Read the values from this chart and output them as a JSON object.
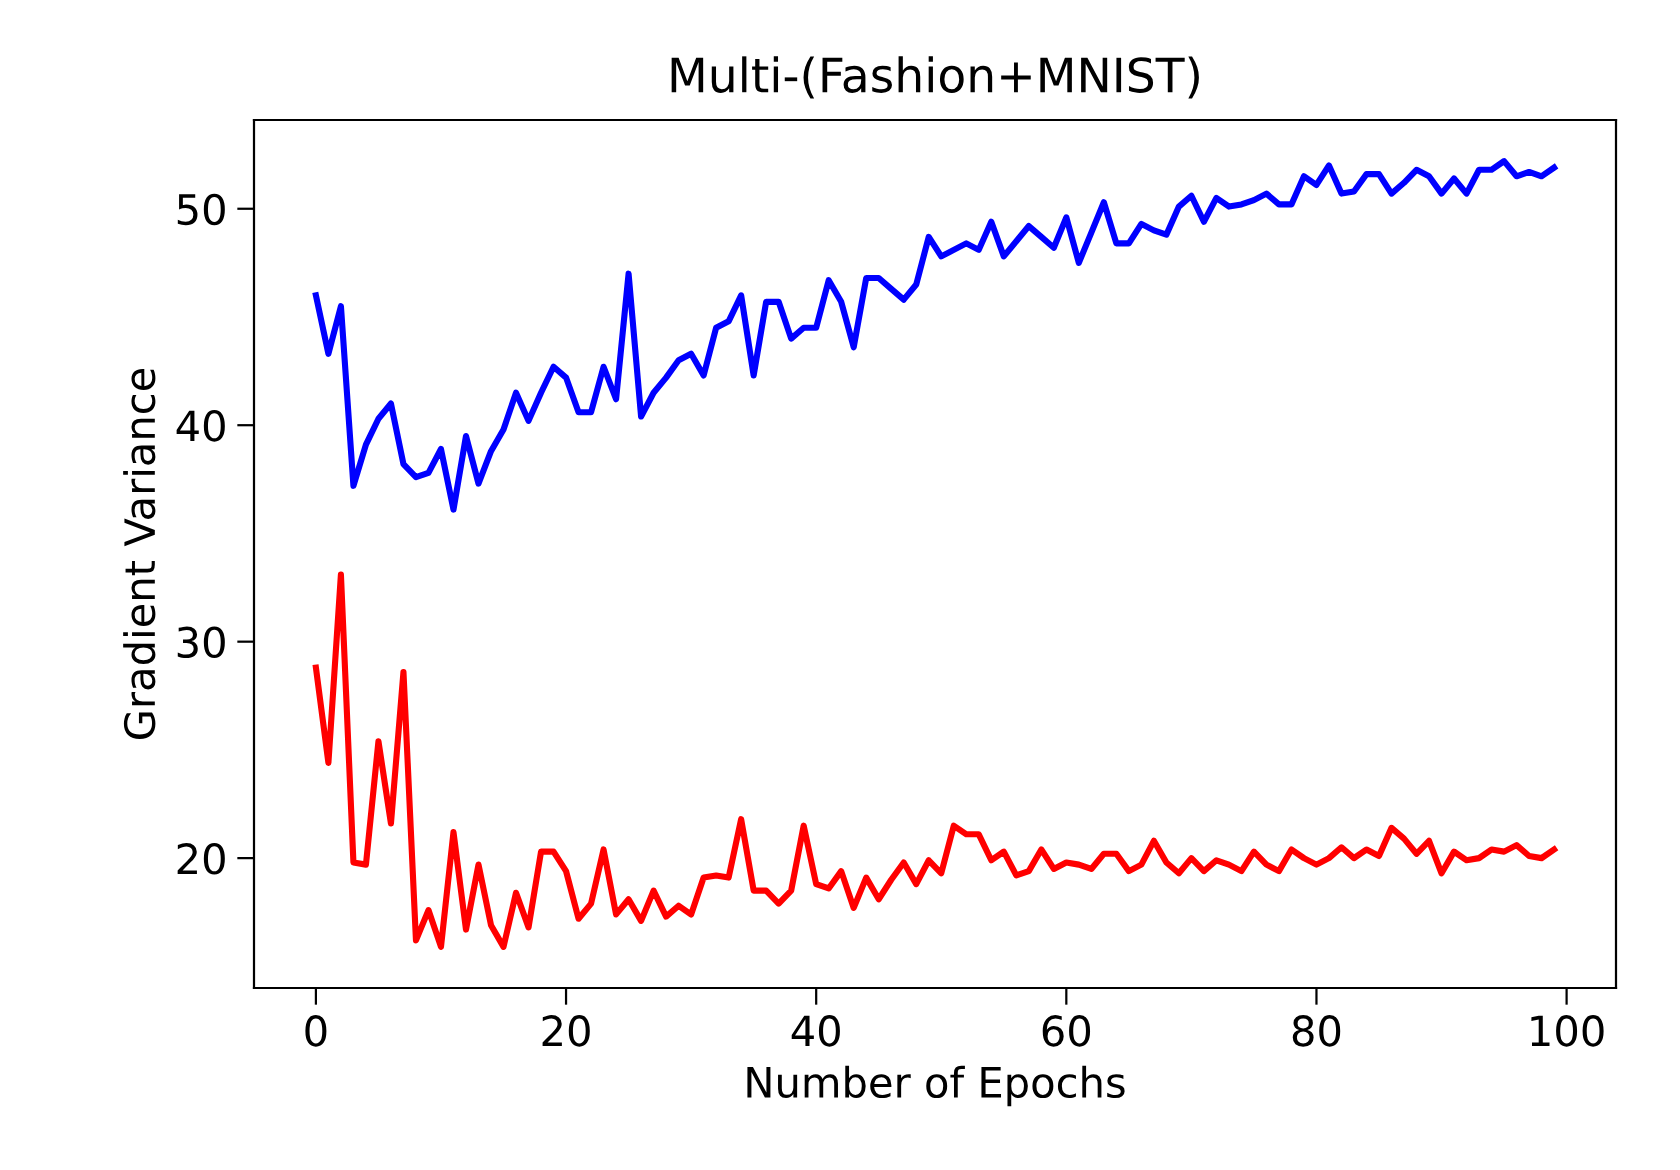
{
  "chart_data": {
    "type": "line",
    "title": "Multi-(Fashion+MNIST)",
    "xlabel": "Number of Epochs",
    "ylabel": "Gradient Variance",
    "x": [
      0,
      1,
      2,
      3,
      4,
      5,
      6,
      7,
      8,
      9,
      10,
      11,
      12,
      13,
      14,
      15,
      16,
      17,
      18,
      19,
      20,
      21,
      22,
      23,
      24,
      25,
      26,
      27,
      28,
      29,
      30,
      31,
      32,
      33,
      34,
      35,
      36,
      37,
      38,
      39,
      40,
      41,
      42,
      43,
      44,
      45,
      46,
      47,
      48,
      49,
      50,
      51,
      52,
      53,
      54,
      55,
      56,
      57,
      58,
      59,
      60,
      61,
      62,
      63,
      64,
      65,
      66,
      67,
      68,
      69,
      70,
      71,
      72,
      73,
      74,
      75,
      76,
      77,
      78,
      79,
      80,
      81,
      82,
      83,
      84,
      85,
      86,
      87,
      88,
      89,
      90,
      91,
      92,
      93,
      94,
      95,
      96,
      97,
      98,
      99
    ],
    "series": [
      {
        "color": "#0000ff",
        "values": [
          46.0,
          43.3,
          45.5,
          37.2,
          39.1,
          40.3,
          41.0,
          38.2,
          37.6,
          37.8,
          38.9,
          36.1,
          39.5,
          37.3,
          38.8,
          39.8,
          41.5,
          40.2,
          41.5,
          42.7,
          42.2,
          40.6,
          40.6,
          42.7,
          41.2,
          47.0,
          40.4,
          41.5,
          42.2,
          43.0,
          43.3,
          42.3,
          44.5,
          44.8,
          46.0,
          42.3,
          45.7,
          45.7,
          44.0,
          44.5,
          44.5,
          46.7,
          45.7,
          43.6,
          46.8,
          46.8,
          46.3,
          45.8,
          46.5,
          48.7,
          47.8,
          48.1,
          48.4,
          48.1,
          49.4,
          47.8,
          48.5,
          49.2,
          48.7,
          48.2,
          49.6,
          47.5,
          48.9,
          50.3,
          48.4,
          48.4,
          49.3,
          49.0,
          48.8,
          50.1,
          50.6,
          49.4,
          50.5,
          50.1,
          50.2,
          50.4,
          50.7,
          50.2,
          50.2,
          51.5,
          51.1,
          52.0,
          50.7,
          50.8,
          51.6,
          51.6,
          50.7,
          51.2,
          51.8,
          51.5,
          50.7,
          51.4,
          50.7,
          51.8,
          51.8,
          52.2,
          51.5,
          51.7,
          51.5,
          51.9
        ]
      },
      {
        "color": "#ff0000",
        "values": [
          28.8,
          24.4,
          33.1,
          19.8,
          19.7,
          25.4,
          21.6,
          28.6,
          16.2,
          17.6,
          15.9,
          21.2,
          16.7,
          19.7,
          16.9,
          15.9,
          18.4,
          16.8,
          20.3,
          20.3,
          19.4,
          17.2,
          17.9,
          20.4,
          17.4,
          18.1,
          17.1,
          18.5,
          17.3,
          17.8,
          17.4,
          19.1,
          19.2,
          19.1,
          21.8,
          18.5,
          18.5,
          17.9,
          18.5,
          21.5,
          18.8,
          18.6,
          19.4,
          17.7,
          19.1,
          18.1,
          19.0,
          19.8,
          18.8,
          19.9,
          19.3,
          21.5,
          21.1,
          21.1,
          19.9,
          20.3,
          19.2,
          19.4,
          20.4,
          19.5,
          19.8,
          19.7,
          19.5,
          20.2,
          20.2,
          19.4,
          19.7,
          20.8,
          19.8,
          19.3,
          20.0,
          19.4,
          19.9,
          19.7,
          19.4,
          20.3,
          19.7,
          19.4,
          20.4,
          20.0,
          19.7,
          20.0,
          20.5,
          20.0,
          20.4,
          20.1,
          21.4,
          20.9,
          20.2,
          20.8,
          19.3,
          20.3,
          19.9,
          20.0,
          20.4,
          20.3,
          20.6,
          20.1,
          20.0,
          20.4
        ]
      }
    ],
    "xlim": [
      -4.95,
      103.95
    ],
    "xticks": [
      0,
      20,
      40,
      60,
      80,
      100
    ],
    "ylim": [
      14.0,
      54.1
    ],
    "yticks": [
      20,
      30,
      40,
      50
    ]
  }
}
